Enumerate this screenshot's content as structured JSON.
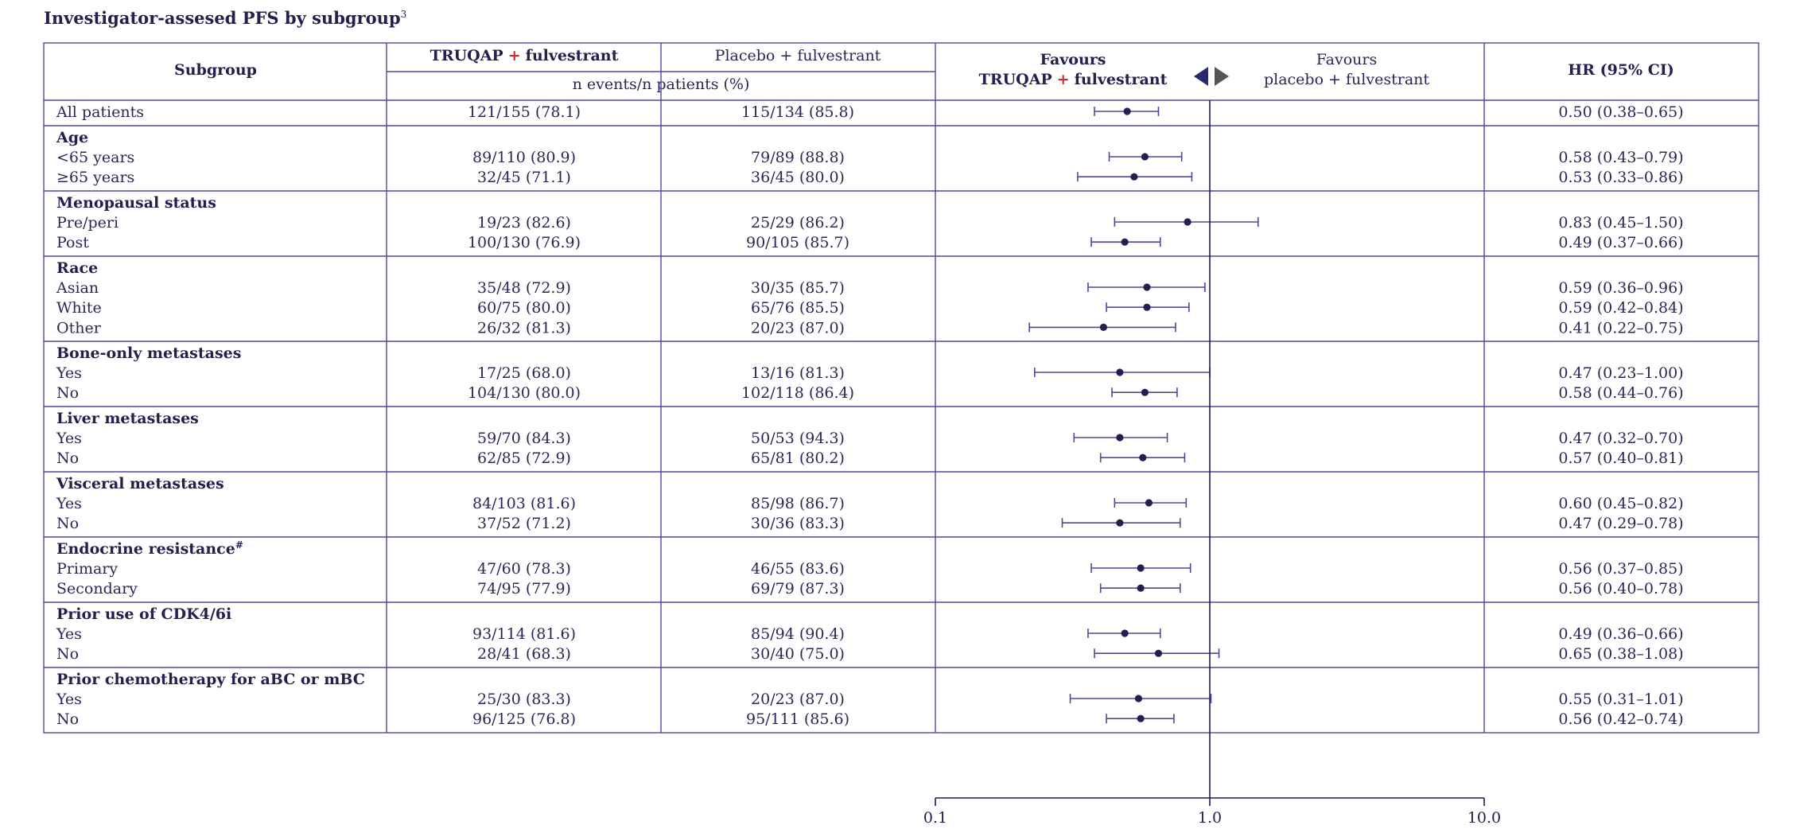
{
  "title": "Investigator-assesed PFS by subgroup",
  "title_sup": "3",
  "colors": {
    "navy": "#23204f",
    "line": "#4a4a9c",
    "plus_red": "#d6282f",
    "grey_arrow": "#555555"
  },
  "header": {
    "subgroup": "Subgroup",
    "truqap_name": "TRUQAP",
    "truqap_plus": "+",
    "truqap_rest": "fulvestrant",
    "placebo": "Placebo + fulvestrant",
    "n_events": "n events/n patients (%)",
    "favours_left_1": "Favours",
    "favours_left_name": "TRUQAP",
    "favours_left_plus": "+",
    "favours_left_rest": "fulvestrant",
    "favours_right_1": "Favours",
    "favours_right_2": "placebo + fulvestrant",
    "hr": "HR (95% CI)",
    "arrow_left_icon": "triangle-left-icon",
    "arrow_right_icon": "triangle-right-icon"
  },
  "chart_data": {
    "type": "forest",
    "x_scale": "log",
    "xlim": [
      0.1,
      10.0
    ],
    "x_ticks": [
      "0.1",
      "1.0",
      "10.0"
    ],
    "reference_line": 1.0,
    "groups": [
      {
        "label": "",
        "rows": [
          {
            "label": "All patients",
            "truqap": "121/155 (78.1)",
            "placebo": "115/134 (85.8)",
            "hr": 0.5,
            "lo": 0.38,
            "hi": 0.65,
            "hr_text": "0.50 (0.38–0.65)"
          }
        ]
      },
      {
        "label": "Age",
        "rows": [
          {
            "label": "<65 years",
            "truqap": "89/110 (80.9)",
            "placebo": "79/89 (88.8)",
            "hr": 0.58,
            "lo": 0.43,
            "hi": 0.79,
            "hr_text": "0.58 (0.43–0.79)"
          },
          {
            "label": "≥65 years",
            "truqap": "32/45 (71.1)",
            "placebo": "36/45 (80.0)",
            "hr": 0.53,
            "lo": 0.33,
            "hi": 0.86,
            "hr_text": "0.53 (0.33–0.86)"
          }
        ]
      },
      {
        "label": "Menopausal status",
        "rows": [
          {
            "label": "Pre/peri",
            "truqap": "19/23 (82.6)",
            "placebo": "25/29 (86.2)",
            "hr": 0.83,
            "lo": 0.45,
            "hi": 1.5,
            "hr_text": "0.83 (0.45–1.50)"
          },
          {
            "label": "Post",
            "truqap": "100/130 (76.9)",
            "placebo": "90/105 (85.7)",
            "hr": 0.49,
            "lo": 0.37,
            "hi": 0.66,
            "hr_text": "0.49 (0.37–0.66)"
          }
        ]
      },
      {
        "label": "Race",
        "rows": [
          {
            "label": "Asian",
            "truqap": "35/48 (72.9)",
            "placebo": "30/35 (85.7)",
            "hr": 0.59,
            "lo": 0.36,
            "hi": 0.96,
            "hr_text": "0.59 (0.36–0.96)"
          },
          {
            "label": "White",
            "truqap": "60/75 (80.0)",
            "placebo": "65/76 (85.5)",
            "hr": 0.59,
            "lo": 0.42,
            "hi": 0.84,
            "hr_text": "0.59 (0.42–0.84)"
          },
          {
            "label": "Other",
            "truqap": "26/32 (81.3)",
            "placebo": "20/23 (87.0)",
            "hr": 0.41,
            "lo": 0.22,
            "hi": 0.75,
            "hr_text": "0.41 (0.22–0.75)"
          }
        ]
      },
      {
        "label": "Bone-only metastases",
        "rows": [
          {
            "label": "Yes",
            "truqap": "17/25 (68.0)",
            "placebo": "13/16 (81.3)",
            "hr": 0.47,
            "lo": 0.23,
            "hi": 1.0,
            "hr_text": "0.47 (0.23–1.00)"
          },
          {
            "label": "No",
            "truqap": "104/130 (80.0)",
            "placebo": "102/118 (86.4)",
            "hr": 0.58,
            "lo": 0.44,
            "hi": 0.76,
            "hr_text": "0.58 (0.44–0.76)"
          }
        ]
      },
      {
        "label": "Liver metastases",
        "rows": [
          {
            "label": "Yes",
            "truqap": "59/70 (84.3)",
            "placebo": "50/53 (94.3)",
            "hr": 0.47,
            "lo": 0.32,
            "hi": 0.7,
            "hr_text": "0.47 (0.32–0.70)"
          },
          {
            "label": "No",
            "truqap": "62/85 (72.9)",
            "placebo": "65/81 (80.2)",
            "hr": 0.57,
            "lo": 0.4,
            "hi": 0.81,
            "hr_text": "0.57 (0.40–0.81)"
          }
        ]
      },
      {
        "label": "Visceral metastases",
        "rows": [
          {
            "label": "Yes",
            "truqap": "84/103 (81.6)",
            "placebo": "85/98 (86.7)",
            "hr": 0.6,
            "lo": 0.45,
            "hi": 0.82,
            "hr_text": "0.60 (0.45–0.82)"
          },
          {
            "label": "No",
            "truqap": "37/52 (71.2)",
            "placebo": "30/36 (83.3)",
            "hr": 0.47,
            "lo": 0.29,
            "hi": 0.78,
            "hr_text": "0.47 (0.29–0.78)"
          }
        ]
      },
      {
        "label": "Endocrine resistance",
        "label_sup": "#",
        "rows": [
          {
            "label": "Primary",
            "truqap": "47/60 (78.3)",
            "placebo": "46/55 (83.6)",
            "hr": 0.56,
            "lo": 0.37,
            "hi": 0.85,
            "hr_text": "0.56 (0.37–0.85)"
          },
          {
            "label": "Secondary",
            "truqap": "74/95 (77.9)",
            "placebo": "69/79 (87.3)",
            "hr": 0.56,
            "lo": 0.4,
            "hi": 0.78,
            "hr_text": "0.56 (0.40–0.78)"
          }
        ]
      },
      {
        "label": "Prior use of CDK4/6i",
        "rows": [
          {
            "label": "Yes",
            "truqap": "93/114 (81.6)",
            "placebo": "85/94 (90.4)",
            "hr": 0.49,
            "lo": 0.36,
            "hi": 0.66,
            "hr_text": "0.49 (0.36–0.66)"
          },
          {
            "label": "No",
            "truqap": "28/41 (68.3)",
            "placebo": "30/40 (75.0)",
            "hr": 0.65,
            "lo": 0.38,
            "hi": 1.08,
            "hr_text": "0.65 (0.38–1.08)"
          }
        ]
      },
      {
        "label": "Prior chemotherapy for aBC or mBC",
        "rows": [
          {
            "label": "Yes",
            "truqap": "25/30 (83.3)",
            "placebo": "20/23 (87.0)",
            "hr": 0.55,
            "lo": 0.31,
            "hi": 1.01,
            "hr_text": "0.55 (0.31–1.01)"
          },
          {
            "label": "No",
            "truqap": "96/125 (76.8)",
            "placebo": "95/111 (85.6)",
            "hr": 0.56,
            "lo": 0.42,
            "hi": 0.74,
            "hr_text": "0.56 (0.42–0.74)"
          }
        ]
      }
    ]
  }
}
